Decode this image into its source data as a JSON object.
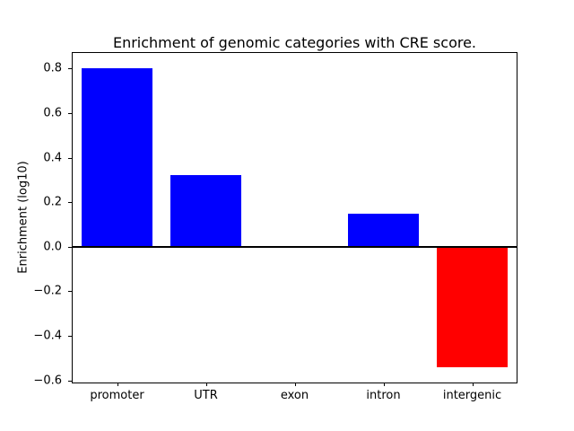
{
  "chart_data": {
    "type": "bar",
    "title": "Enrichment of genomic categories with CRE score.",
    "xlabel": "",
    "ylabel": "Enrichment (log10)",
    "categories": [
      "promoter",
      "UTR",
      "exon",
      "intron",
      "intergenic"
    ],
    "values": [
      0.8,
      0.32,
      0.0,
      0.15,
      -0.54
    ],
    "bar_colors": [
      "#0000ff",
      "#0000ff",
      "#0000ff",
      "#0000ff",
      "#ff0000"
    ],
    "positive_color": "#0000ff",
    "negative_color": "#ff0000",
    "ylim": [
      -0.61,
      0.87
    ],
    "yticks": [
      0.8,
      0.6,
      0.4,
      0.2,
      0.0,
      -0.2,
      -0.4,
      -0.6
    ],
    "ytick_labels": [
      "0.8",
      "0.6",
      "0.4",
      "0.2",
      "0.0",
      "−0.2",
      "−0.4",
      "−0.6"
    ],
    "bar_width_fraction": 0.8,
    "zero_line": true,
    "grid": false,
    "legend": false,
    "background_color": "#ffffff",
    "axis_color": "#000000"
  }
}
